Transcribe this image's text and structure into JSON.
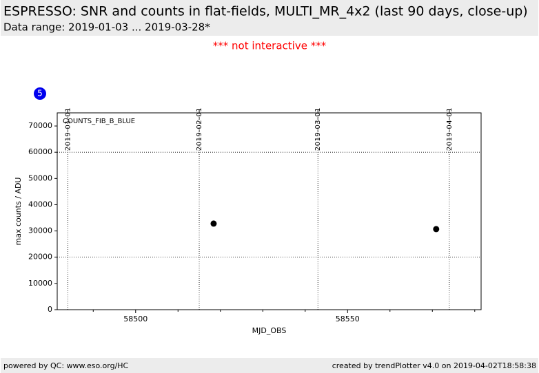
{
  "header": {
    "title": "ESPRESSO: SNR and counts in flat-fields, MULTI_MR_4x2 (last 90 days, close-up)",
    "subtitle": "Data range: 2019-01-03 ... 2019-03-28*"
  },
  "note": "*** not interactive ***",
  "badge": "5",
  "chart_data": {
    "type": "scatter",
    "panel_label": "COUNTS_FIB_B_BLUE",
    "x_label": "MJD_OBS",
    "y_label": "max counts / ADU",
    "x": [
      58518.4,
      58570.9
    ],
    "values": [
      32800,
      30700
    ],
    "color": "#000000",
    "xlim": [
      58481.5,
      58581.5
    ],
    "ylim": [
      0,
      75000
    ],
    "xticks": [
      58500,
      58550
    ],
    "xminorticks": [
      58490,
      58510,
      58520,
      58530,
      58540,
      58560,
      58570,
      58580
    ],
    "yticks": [
      0,
      10000,
      20000,
      30000,
      40000,
      50000,
      60000,
      70000
    ],
    "ygrid": [
      20000,
      60000
    ],
    "x2ticks": [
      {
        "value": 58484,
        "label": "2019-01-01"
      },
      {
        "value": 58515,
        "label": "2019-02-01"
      },
      {
        "value": 58543,
        "label": "2019-03-01"
      },
      {
        "value": 58574,
        "label": "2019-04-01"
      }
    ],
    "grid": true
  },
  "footer": {
    "left": "powered by QC: www.eso.org/HC",
    "right": "created by trendPlotter v4.0 on 2019-04-02T18:58:38"
  }
}
